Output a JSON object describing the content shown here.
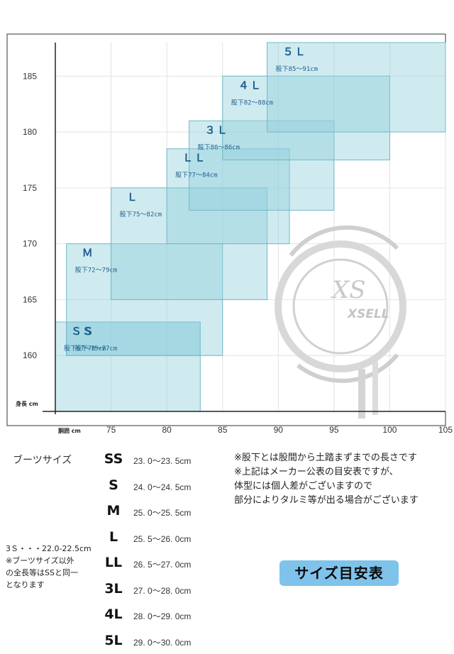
{
  "chart_data": {
    "type": "size-range-chart",
    "xlabel": "胴囲 cm",
    "ylabel": "身長 cm",
    "xlim": [
      70,
      105
    ],
    "ylim": [
      155,
      188
    ],
    "x_ticks": [
      75,
      80,
      85,
      90,
      95,
      100,
      105
    ],
    "y_ticks": [
      160,
      165,
      170,
      175,
      180,
      185
    ],
    "sizes": [
      {
        "name": "SS",
        "label": "ＳＳ",
        "inseam": "股下67～75cm",
        "waist": [
          70,
          83
        ],
        "height": [
          155,
          163
        ]
      },
      {
        "name": "S",
        "label": "Ｓ",
        "inseam": "股下70～77cm",
        "waist": [
          71,
          83
        ],
        "height": [
          160,
          163
        ]
      },
      {
        "name": "M",
        "label": "Ｍ",
        "inseam": "股下72～79cm",
        "waist": [
          71,
          85
        ],
        "height": [
          160,
          170
        ]
      },
      {
        "name": "L",
        "label": "Ｌ",
        "inseam": "股下75～82cm",
        "waist": [
          75,
          89
        ],
        "height": [
          165,
          175
        ]
      },
      {
        "name": "LL",
        "label": "ＬＬ",
        "inseam": "股下77～84cm",
        "waist": [
          80,
          91
        ],
        "height": [
          170,
          178.5
        ]
      },
      {
        "name": "3L",
        "label": "３Ｌ",
        "inseam": "股下80～86cm",
        "waist": [
          82,
          95
        ],
        "height": [
          173,
          181
        ]
      },
      {
        "name": "4L",
        "label": "４Ｌ",
        "inseam": "股下82～88cm",
        "waist": [
          85,
          100
        ],
        "height": [
          177.5,
          185
        ]
      },
      {
        "name": "5L",
        "label": "５Ｌ",
        "inseam": "股下85～91cm",
        "waist": [
          89,
          105
        ],
        "height": [
          180,
          188
        ]
      }
    ],
    "watermark": "XSELL"
  },
  "boots": {
    "title": "ブーツサイズ",
    "rows": [
      {
        "size": "SS",
        "range": "23. 0～23. 5cm"
      },
      {
        "size": "S",
        "range": "24. 0～24. 5cm"
      },
      {
        "size": "M",
        "range": "25. 0～25. 5cm"
      },
      {
        "size": "L",
        "range": "25. 5～26. 0cm"
      },
      {
        "size": "LL",
        "range": "26. 5～27. 0cm"
      },
      {
        "size": "3L",
        "range": "27. 0～28. 0cm"
      },
      {
        "size": "4L",
        "range": "28. 0～29. 0cm"
      },
      {
        "size": "5L",
        "range": "29. 0～30. 0cm"
      }
    ]
  },
  "notes": [
    "※股下とは股間から土踏まずまでの長さです",
    "※上記はメーカー公表の目安表ですが、",
    "体型には個人差がございますので",
    "部分によりタルミ等が出る場合がございます"
  ],
  "side_note": [
    "3Ｓ・・・22.0-22.5cm",
    "※ブーツサイズ以外",
    "の全長等はSSと同一",
    "となります"
  ],
  "badge": "サイズ目安表",
  "colors": {
    "box_fill": "#8fd0dc",
    "box_stroke": "#6fb9c8",
    "label": "#1f5f8f",
    "badge": "#7fc3ea"
  }
}
